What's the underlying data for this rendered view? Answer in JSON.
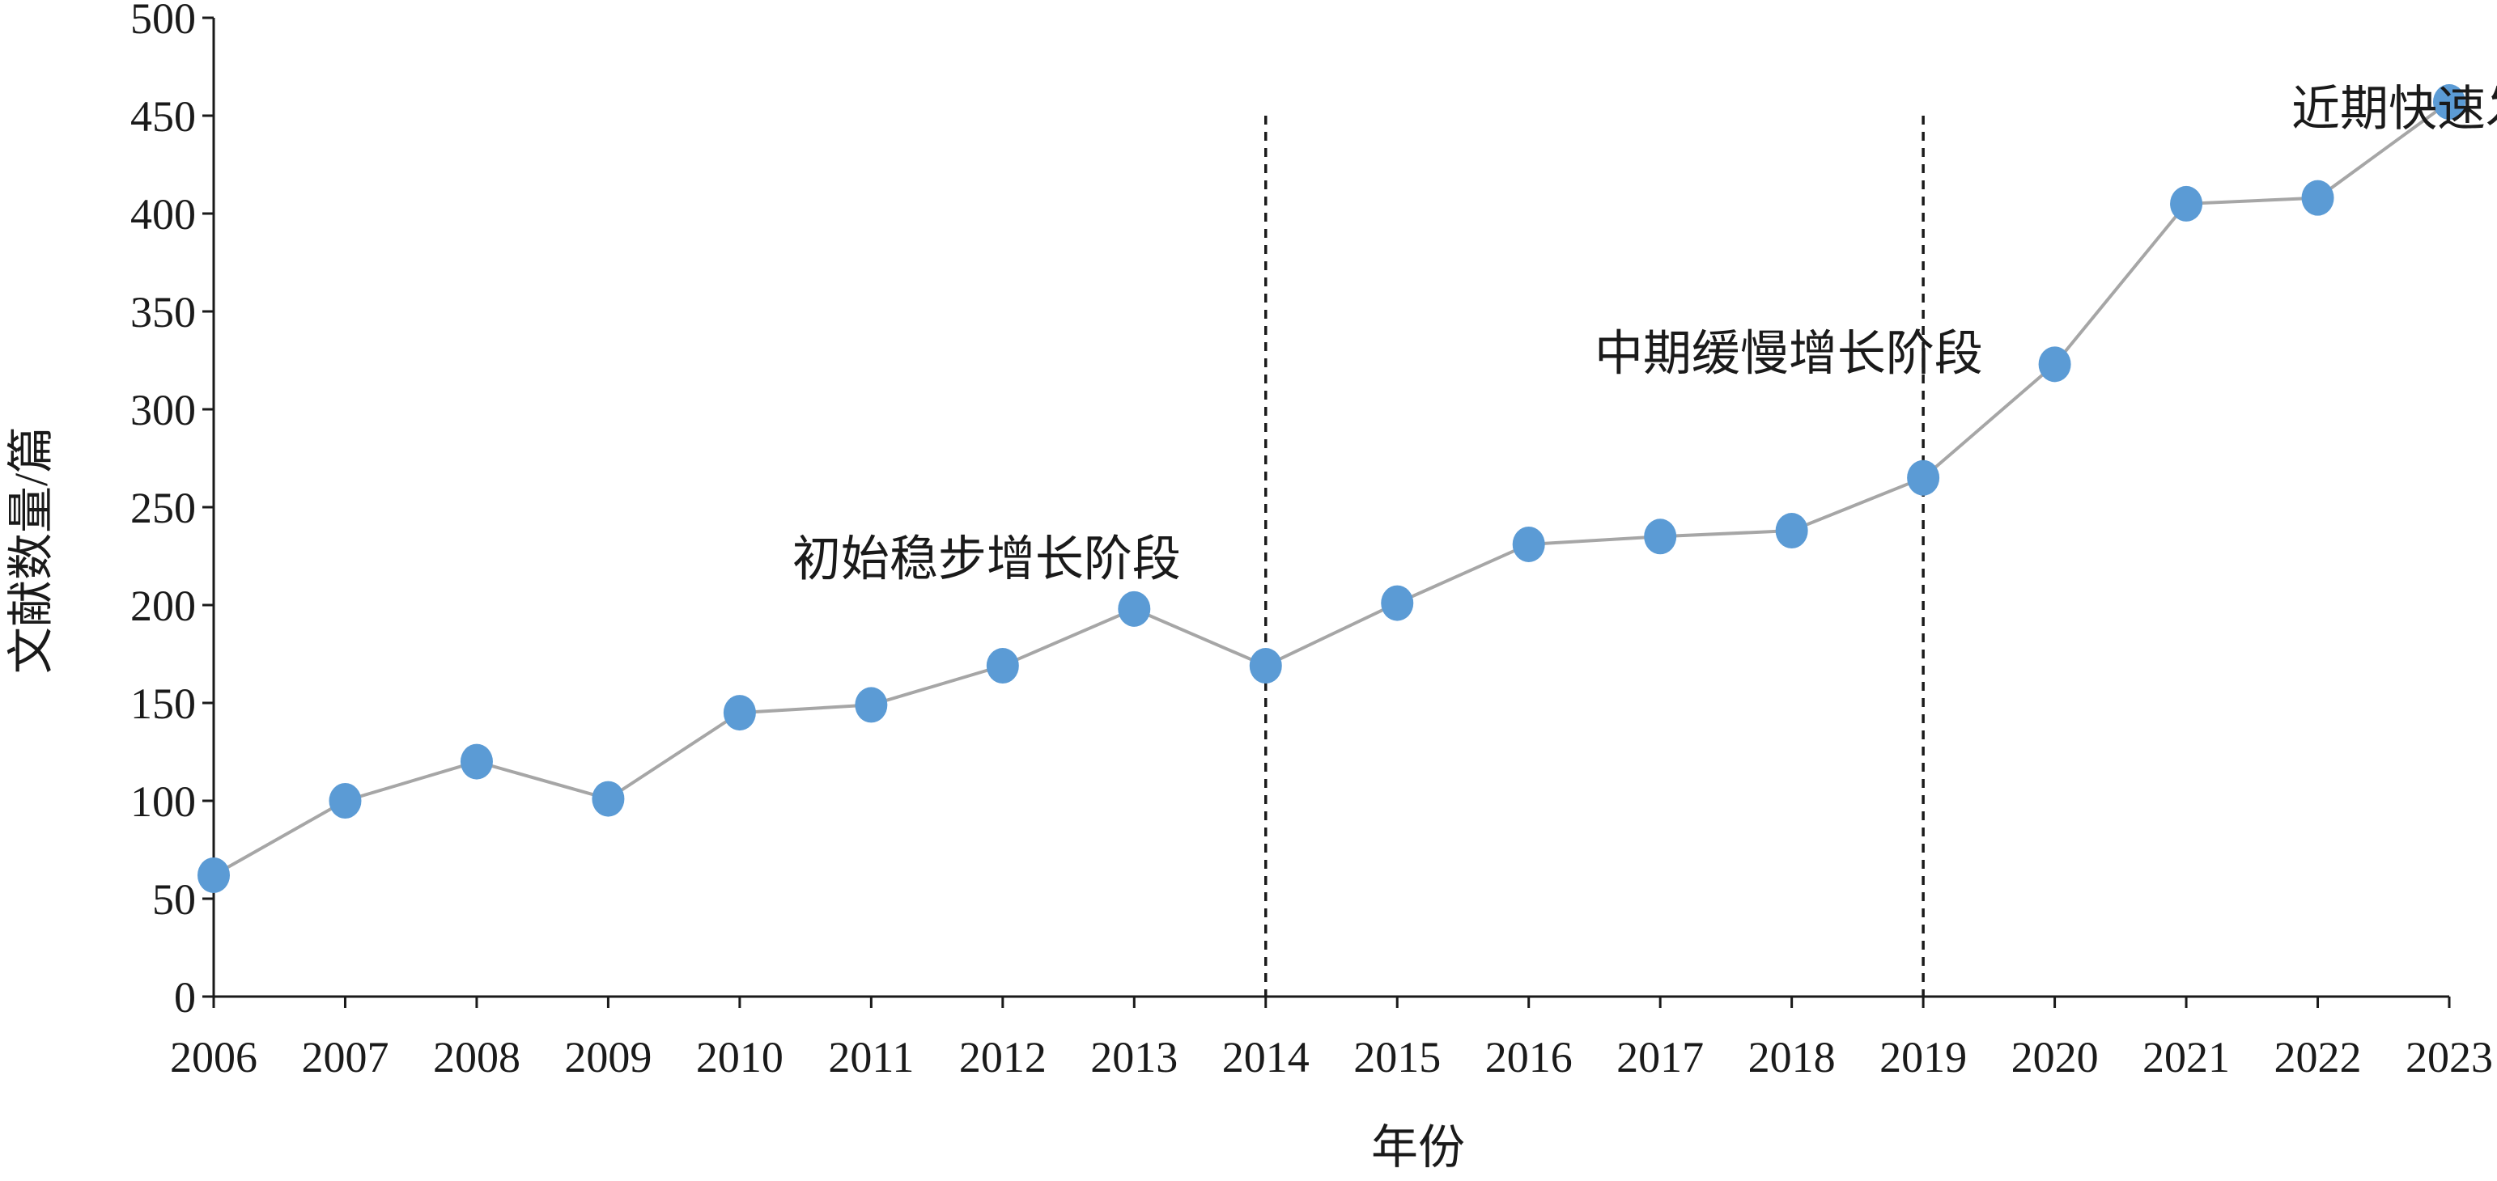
{
  "chart_data": {
    "type": "line",
    "xlabel": "年份",
    "ylabel": "文献数量/篇",
    "x": [
      "2006",
      "2007",
      "2008",
      "2009",
      "2010",
      "2011",
      "2012",
      "2013",
      "2014",
      "2015",
      "2016",
      "2017",
      "2018",
      "2019",
      "2020",
      "2021",
      "2022",
      "2023"
    ],
    "series": [
      {
        "values": [
          62,
          100,
          120,
          101,
          145,
          149,
          169,
          198,
          169,
          201,
          231,
          235,
          238,
          265,
          323,
          405,
          408,
          457
        ]
      }
    ],
    "ylim": [
      0,
      500
    ],
    "yticks": [
      "0",
      "50",
      "100",
      "150",
      "200",
      "250",
      "300",
      "350",
      "400",
      "450",
      "500"
    ],
    "grid": false,
    "legend": "none",
    "phase_dividers": [
      {
        "after_year": "2014",
        "top_value": 450
      },
      {
        "after_year": "2019",
        "top_value": 450
      }
    ],
    "annotations": [
      {
        "text": "初始稳步增长阶段",
        "at_year": "2010.4",
        "at_value": 215
      },
      {
        "text": "中期缓慢增长阶段",
        "at_year": "2016.5",
        "at_value": 320
      },
      {
        "text": "近期快速发展阶段",
        "at_year": "2021.8",
        "at_value": 445
      }
    ],
    "colors": {
      "marker": "#5b9bd5",
      "line": "#a6a6a6",
      "axis": "#1a1a1a",
      "divider": "#1a1a1a"
    }
  }
}
